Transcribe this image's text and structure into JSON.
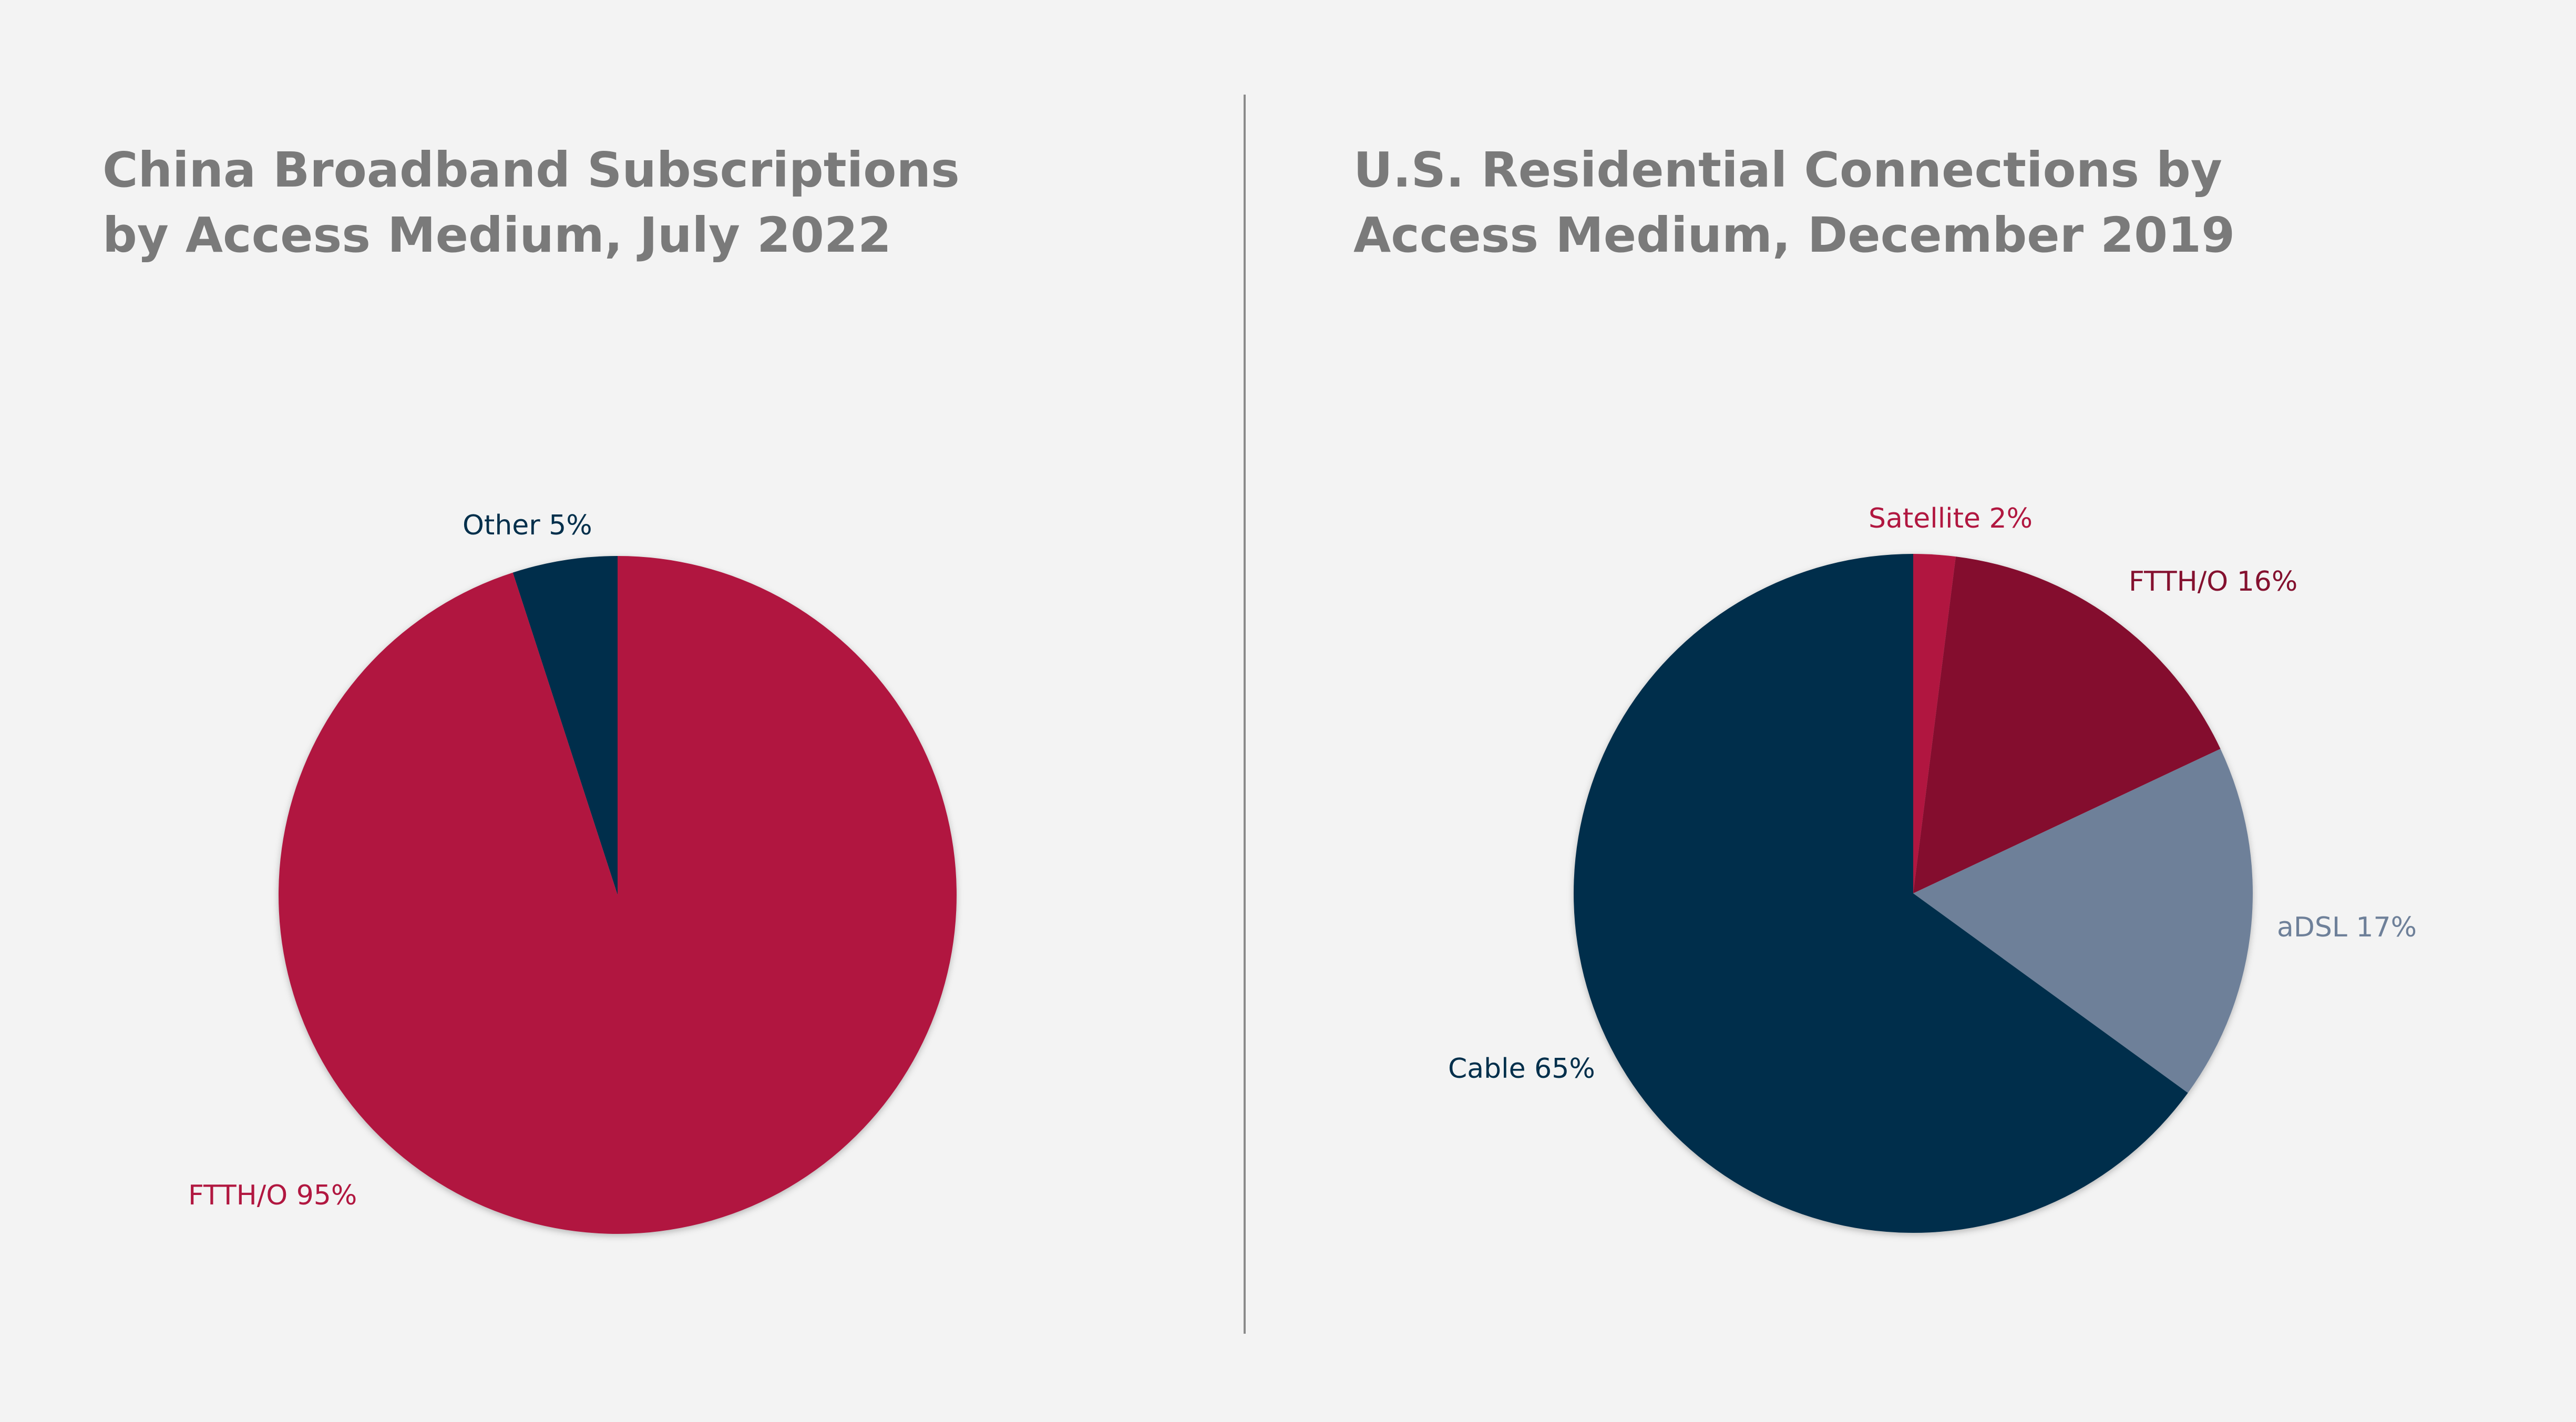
{
  "chart_data": [
    {
      "type": "pie",
      "title": "China Broadband Subscriptions by Access Medium, July 2022",
      "slices": [
        {
          "label": "Other 5%",
          "name": "Other",
          "value": 5,
          "color": "#002f4b"
        },
        {
          "label": "FTTH/O 95%",
          "name": "FTTH/O",
          "value": 95,
          "color": "#b11740"
        }
      ]
    },
    {
      "type": "pie",
      "title": "U.S. Residential Connections by Access Medium, December 2019",
      "slices": [
        {
          "label": "Satellite 2%",
          "name": "Satellite",
          "value": 2,
          "color": "#b11740"
        },
        {
          "label": "FTTH/O 16%",
          "name": "FTTH/O",
          "value": 16,
          "color": "#84112f"
        },
        {
          "label": "aDSL 17%",
          "name": "aDSL",
          "value": 17,
          "color": "#6e8099"
        },
        {
          "label": "Cable 65%",
          "name": "Cable",
          "value": 65,
          "color": "#002f4b"
        }
      ]
    }
  ],
  "colors": {
    "background": "#f3f3f3",
    "title": "#7a7a7a",
    "divider": "#8a8a8a"
  }
}
